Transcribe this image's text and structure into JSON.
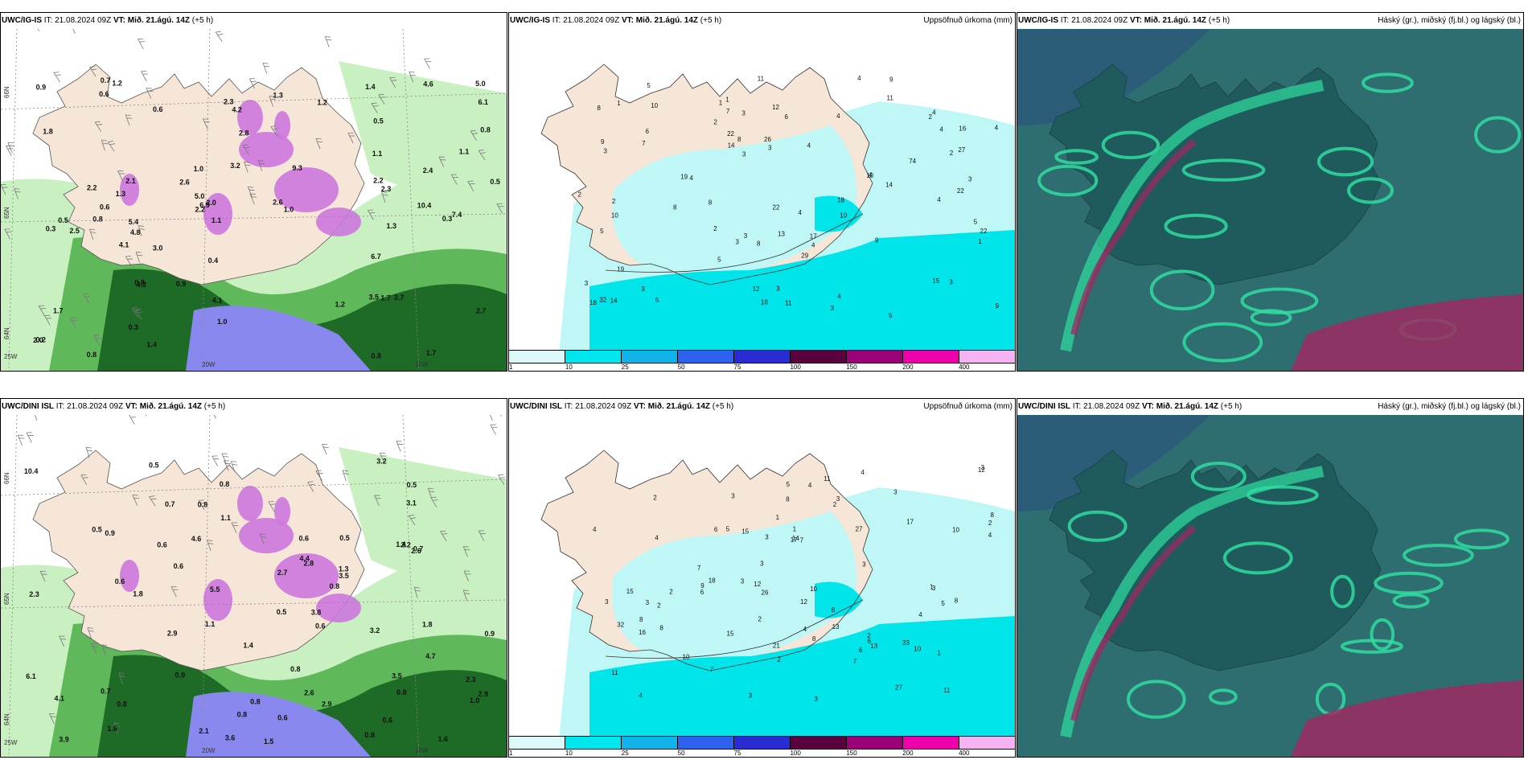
{
  "panels": [
    {
      "id": "p1",
      "model": "UWC/IG-IS",
      "it_label": "IT:",
      "it_value": "21.08.2024 09Z",
      "vt_label": "VT:",
      "vt_value": "Mið. 21.ágú. 14Z",
      "lead": "(+5 h)",
      "right_title": "",
      "type": "precip-wind",
      "lat_labels": [
        "66N",
        "65N",
        "64N"
      ],
      "lon_labels": [
        "25W",
        "20W",
        "15W"
      ],
      "values": [
        "0.6",
        "0.9",
        "1.0",
        "1.0",
        "0.5",
        "1.3",
        "1.0",
        "1.4",
        "1.3",
        "1.7",
        "2.1",
        "0.5",
        "0.8",
        "0.6",
        "0.7",
        "1.1",
        "1.3",
        "0.8",
        "0.3",
        "0.2",
        "0.5",
        "0.9",
        "0.4",
        "0.3",
        "0.6",
        "1.2",
        "1.2",
        "1.2",
        "2.3",
        "0.8",
        "1.1",
        "2.3",
        "1.7",
        "2.4",
        "2.6",
        "2.5",
        "3.0",
        "4.1",
        "4.8",
        "5.0",
        "6.9",
        "9.3",
        "4.2",
        "3.7",
        "2.8",
        "4.6",
        "6.1",
        "5.4",
        "7.4",
        "4.3",
        "4.1",
        "2.7",
        "5.0",
        "3.5",
        "2.6",
        "3.2",
        "2.2",
        "2.2",
        "2.0",
        "1.7",
        "2.0",
        "1.8",
        "1.1",
        "6.7",
        "10.4",
        "0.8",
        "2.2",
        "1.4",
        "0.3",
        "0.8"
      ]
    },
    {
      "id": "p2",
      "model": "UWC/IG-IS",
      "it_label": "IT:",
      "it_value": "21.08.2024 09Z",
      "vt_label": "VT:",
      "vt_value": "Mið. 21.ágú. 14Z",
      "lead": "(+5 h)",
      "right_title": "Uppsöfnuð úrkoma (mm)",
      "type": "accum-precip",
      "values": [
        "1",
        "1",
        "2",
        "1",
        "2",
        "1",
        "3",
        "4",
        "3",
        "5",
        "2",
        "2",
        "3",
        "3",
        "3",
        "4",
        "5",
        "6",
        "3",
        "4",
        "9",
        "7",
        "5",
        "4",
        "4",
        "3",
        "4",
        "5",
        "3",
        "3",
        "8",
        "5",
        "6",
        "3",
        "11",
        "12",
        "2",
        "4",
        "8",
        "3",
        "8",
        "3",
        "7",
        "4",
        "9",
        "4",
        "12",
        "13",
        "11",
        "10",
        "10",
        "4",
        "5",
        "8",
        "4",
        "9",
        "4",
        "22",
        "18",
        "22",
        "18",
        "26",
        "74",
        "15",
        "10",
        "17",
        "27",
        "16",
        "29",
        "22",
        "18",
        "32",
        "2",
        "19",
        "22",
        "14",
        "10",
        "14",
        "8",
        "9",
        "19",
        "14",
        "11"
      ],
      "legend_ticks": [
        "1",
        "10",
        "25",
        "50",
        "75",
        "100",
        "150",
        "200",
        "400"
      ]
    },
    {
      "id": "p3",
      "model": "UWC/IG-IS",
      "it_label": "IT:",
      "it_value": "21.08.2024 09Z",
      "vt_label": "VT:",
      "vt_value": "Mið. 21.ágú. 14Z",
      "lead": "(+5 h)",
      "right_title": "Háský (gr.), miðský (fj.bl.) og lágský (bl.)",
      "type": "cloud"
    },
    {
      "id": "p4",
      "model": "UWC/DINI ISL",
      "it_label": "IT:",
      "it_value": "21.08.2024 09Z",
      "vt_label": "VT:",
      "vt_value": "Mið. 21.ágú. 14Z",
      "lead": "(+5 h)",
      "right_title": "",
      "type": "precip-wind",
      "lat_labels": [
        "66N",
        "65N",
        "64N"
      ],
      "lon_labels": [
        "25W",
        "20W",
        "15W"
      ],
      "values": [
        "0.9",
        "0.5",
        "0.6",
        "0.7",
        "0.5",
        "0.6",
        "0.5",
        "0.8",
        "0.6",
        "0.8",
        "0.5",
        "0.9",
        "0.8",
        "1.1",
        "0.6",
        "0.8",
        "0.5",
        "0.7",
        "0.8",
        "0.8",
        "1.0",
        "0.6",
        "1.6",
        "2.2",
        "1.5",
        "1.4",
        "0.8",
        "0.6",
        "0.7",
        "0.8",
        "1.3",
        "0.6",
        "0.9",
        "0.8",
        "1.6",
        "2.3",
        "1.4",
        "1.8",
        "2.3",
        "3.5",
        "3.8",
        "4.1",
        "2.7",
        "3.1",
        "3.2",
        "3.2",
        "3.5",
        "2.9",
        "4.4",
        "4.7",
        "3.9",
        "3.6",
        "4.6",
        "5.5",
        "2.6",
        "2.9",
        "2.8",
        "1.1",
        "6.1",
        "10.4",
        "1.8",
        "2.6",
        "2.9",
        "2.1"
      ]
    },
    {
      "id": "p5",
      "model": "UWC/DINI ISL",
      "it_label": "IT:",
      "it_value": "21.08.2024 09Z",
      "vt_label": "VT:",
      "vt_value": "Mið. 21.ágú. 14Z",
      "lead": "(+5 h)",
      "right_title": "Uppsöfnuð úrkoma (mm)",
      "type": "accum-precip",
      "values": [
        "1",
        "3",
        "15",
        "5",
        "1",
        "2",
        "2",
        "3",
        "2",
        "2",
        "5",
        "4",
        "3",
        "2",
        "4",
        "1",
        "2",
        "3",
        "3",
        "3",
        "8",
        "3",
        "5",
        "7",
        "6",
        "3",
        "9",
        "8",
        "3",
        "4",
        "7",
        "8",
        "10",
        "17",
        "14",
        "1",
        "2",
        "4",
        "6",
        "11",
        "11",
        "3",
        "4",
        "12",
        "7",
        "6",
        "6",
        "12",
        "8",
        "8",
        "32",
        "27",
        "21",
        "27",
        "13",
        "4",
        "2",
        "3",
        "4",
        "3",
        "3",
        "7",
        "12",
        "26",
        "13",
        "15",
        "10",
        "17",
        "18",
        "15",
        "11",
        "16",
        "4",
        "33",
        "8",
        "8",
        "10",
        "10"
      ],
      "legend_ticks": [
        "1",
        "10",
        "25",
        "50",
        "75",
        "100",
        "150",
        "200",
        "400"
      ]
    },
    {
      "id": "p6",
      "model": "UWC/DINI ISL",
      "it_label": "IT:",
      "it_value": "21.08.2024 09Z",
      "vt_label": "VT:",
      "vt_value": "Mið. 21.ágú. 14Z",
      "lead": "(+5 h)",
      "right_title": "Háský (gr.), miðský (fj.bl.) og lágský (bl.)",
      "type": "cloud"
    }
  ],
  "colors": {
    "land": "#f5e6d8",
    "precip_light": "#c8f0c0",
    "precip_mid": "#5fb85a",
    "precip_dark": "#1e6b27",
    "precip_purple": "#cc77dd",
    "precip_blue": "#8888ee",
    "accum_lightest": "#bff7f7",
    "accum_light": "#00e5ea",
    "cloud_base": "#2e6e70",
    "cloud_dark": "#1f5a5c",
    "cloud_green": "#2fdda0",
    "cloud_magenta": "#9c2a60",
    "legend": [
      "#dcf9f9",
      "#00e6ee",
      "#11b3e8",
      "#2c62ee",
      "#2a2bd0",
      "#5a003e",
      "#9c0077",
      "#ee00aa",
      "#f6b3f2"
    ]
  }
}
